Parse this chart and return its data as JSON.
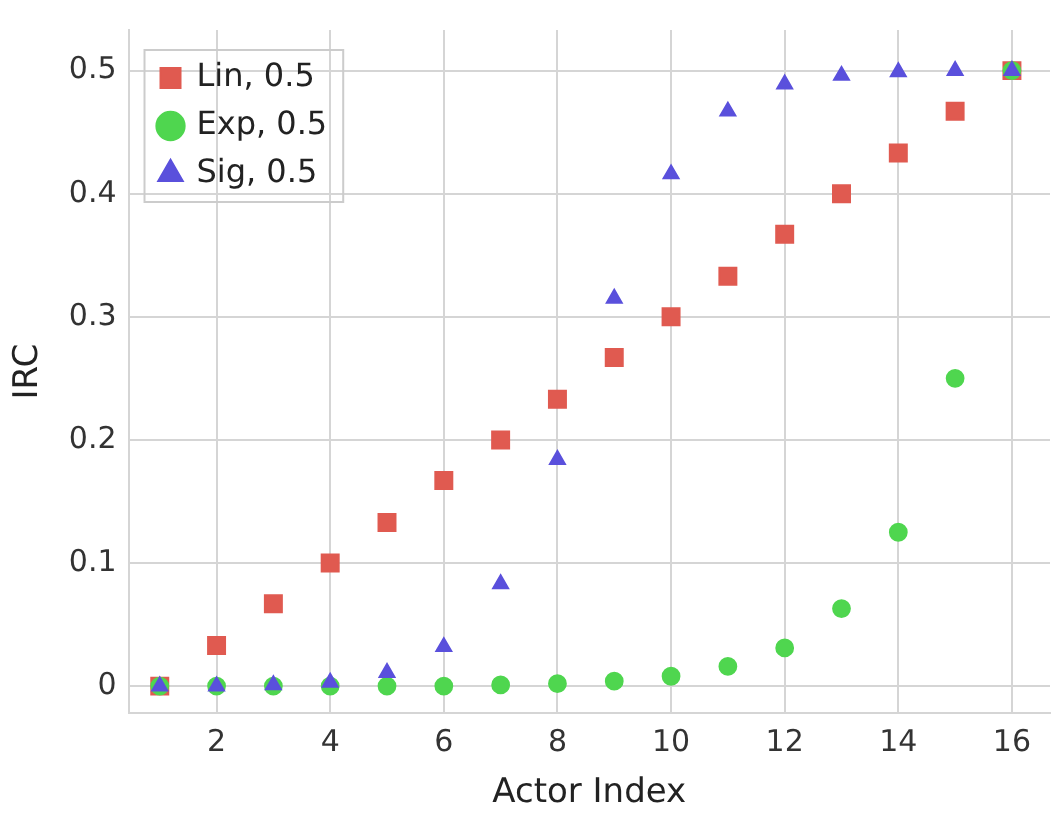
{
  "chart_data": {
    "type": "scatter",
    "xlabel": "Actor Index",
    "ylabel": "IRC",
    "x": [
      1,
      2,
      3,
      4,
      5,
      6,
      7,
      8,
      9,
      10,
      11,
      12,
      13,
      14,
      15,
      16
    ],
    "series": [
      {
        "name": "Lin, 0.5",
        "color": "#e05a50",
        "marker": "square",
        "values": [
          0,
          0.033,
          0.067,
          0.1,
          0.133,
          0.167,
          0.2,
          0.233,
          0.267,
          0.3,
          0.333,
          0.367,
          0.4,
          0.433,
          0.467,
          0.5
        ]
      },
      {
        "name": "Exp, 0.5",
        "color": "#4fd64f",
        "marker": "circle",
        "values": [
          0,
          0,
          0,
          0,
          0,
          0,
          0.001,
          0.002,
          0.004,
          0.008,
          0.016,
          0.031,
          0.063,
          0.125,
          0.25,
          0.5
        ]
      },
      {
        "name": "Sig, 0.5",
        "color": "#5a50dc",
        "marker": "triangle",
        "values": [
          0,
          0,
          0.001,
          0.003,
          0.011,
          0.032,
          0.083,
          0.184,
          0.315,
          0.416,
          0.467,
          0.489,
          0.496,
          0.499,
          0.5,
          0.5
        ]
      }
    ],
    "xlim": [
      0.45,
      16.67
    ],
    "xticks": [
      2,
      4,
      6,
      8,
      10,
      12,
      14,
      16
    ],
    "ylim": [
      -0.022,
      0.533
    ],
    "yticks": [
      0,
      0.1,
      0.2,
      0.3,
      0.4,
      0.5
    ],
    "grid": true,
    "legend": "top left"
  }
}
